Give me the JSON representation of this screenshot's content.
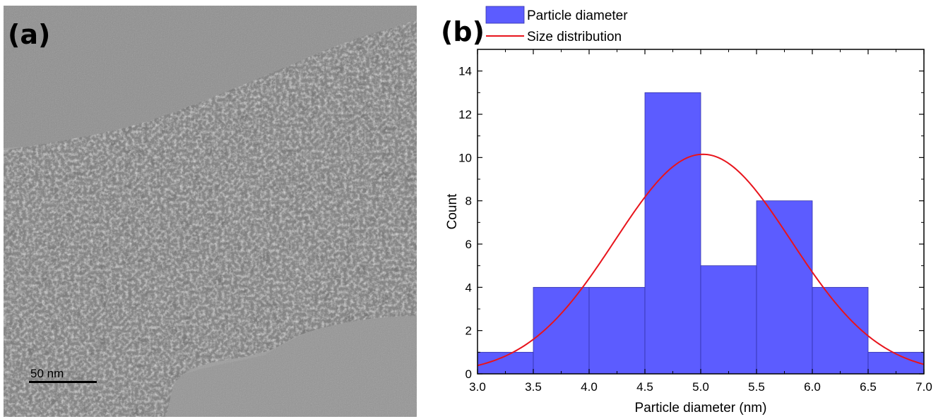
{
  "panel_a": {
    "label": "(a)",
    "scale_bar_label": "50 nm"
  },
  "panel_b": {
    "label": "(b)"
  },
  "colors": {
    "bar_fill": "#5c5cff",
    "bar_stroke": "#3333aa",
    "curve": "#e8141c",
    "axis": "#000000"
  },
  "chart_data": {
    "type": "bar",
    "title": "",
    "xlabel": "Particle diameter (nm)",
    "ylabel": "Count",
    "xlim": [
      3.0,
      7.0
    ],
    "ylim": [
      0,
      15
    ],
    "x_ticks": [
      "3.0",
      "3.5",
      "4.0",
      "4.5",
      "5.0",
      "5.5",
      "6.0",
      "6.5",
      "7.0"
    ],
    "y_ticks": [
      "0",
      "2",
      "4",
      "6",
      "8",
      "10",
      "12",
      "14"
    ],
    "bins": [
      {
        "start": 3.0,
        "end": 3.5,
        "count": 1
      },
      {
        "start": 3.5,
        "end": 4.0,
        "count": 4
      },
      {
        "start": 4.0,
        "end": 4.5,
        "count": 4
      },
      {
        "start": 4.5,
        "end": 5.0,
        "count": 13
      },
      {
        "start": 5.0,
        "end": 5.5,
        "count": 5
      },
      {
        "start": 5.5,
        "end": 6.0,
        "count": 8
      },
      {
        "start": 6.0,
        "end": 6.5,
        "count": 4
      },
      {
        "start": 6.5,
        "end": 7.0,
        "count": 1
      }
    ],
    "series": [
      {
        "name": "Particle diameter",
        "kind": "bar"
      },
      {
        "name": "Size distribution",
        "kind": "line",
        "curve": "gaussian",
        "mean": 5.02,
        "sigma": 0.79,
        "peak": 10.15
      }
    ],
    "legend_position": "top-left"
  }
}
